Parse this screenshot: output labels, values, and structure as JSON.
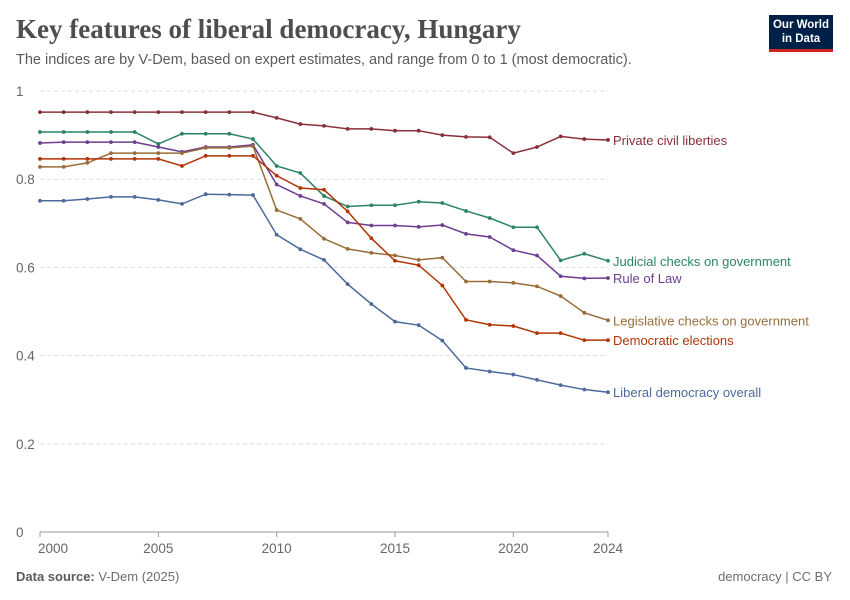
{
  "header": {
    "title": "Key features of liberal democracy, Hungary",
    "subtitle": "The indices are by V-Dem, based on expert estimates, and range from 0 to 1 (most democratic).",
    "logo_line1": "Our World",
    "logo_line2": "in Data"
  },
  "footer": {
    "source_label": "Data source:",
    "source_value": "V-Dem (2025)",
    "license": "democracy | CC BY"
  },
  "colors": {
    "logo_bg": "#002147",
    "logo_accent": "#ce261e"
  },
  "chart_data": {
    "type": "line",
    "title": "Key features of liberal democracy, Hungary",
    "x": [
      2000,
      2001,
      2002,
      2003,
      2004,
      2005,
      2006,
      2007,
      2008,
      2009,
      2010,
      2011,
      2012,
      2013,
      2014,
      2015,
      2016,
      2017,
      2018,
      2019,
      2020,
      2021,
      2022,
      2023,
      2024
    ],
    "xlim": [
      2000,
      2024
    ],
    "ylim": [
      0,
      1
    ],
    "x_ticks": [
      2000,
      2005,
      2010,
      2015,
      2020,
      2024
    ],
    "y_ticks": [
      0,
      0.2,
      0.4,
      0.6,
      0.8,
      1
    ],
    "y_tick_labels": [
      "0",
      "0.2",
      "0.4",
      "0.6",
      "0.8",
      "1"
    ],
    "grid": "horizontal dashed",
    "legend": "labels at line ends (right)",
    "series": [
      {
        "name": "Private civil liberties",
        "color": "#883039",
        "values": [
          0.952,
          0.952,
          0.952,
          0.952,
          0.952,
          0.952,
          0.952,
          0.952,
          0.952,
          0.952,
          0.939,
          0.925,
          0.921,
          0.914,
          0.914,
          0.91,
          0.91,
          0.9,
          0.896,
          0.895,
          0.859,
          0.873,
          0.897,
          0.891,
          0.889
        ]
      },
      {
        "name": "Judicial checks on government",
        "color": "#2c8465",
        "values": [
          0.907,
          0.907,
          0.907,
          0.907,
          0.907,
          0.88,
          0.903,
          0.903,
          0.903,
          0.891,
          0.83,
          0.814,
          0.762,
          0.738,
          0.741,
          0.741,
          0.749,
          0.746,
          0.728,
          0.712,
          0.691,
          0.691,
          0.616,
          0.631,
          0.615
        ]
      },
      {
        "name": "Rule of Law",
        "color": "#6d3e91",
        "values": [
          0.882,
          0.884,
          0.884,
          0.884,
          0.884,
          0.873,
          0.862,
          0.873,
          0.873,
          0.878,
          0.788,
          0.762,
          0.744,
          0.702,
          0.695,
          0.695,
          0.692,
          0.696,
          0.676,
          0.669,
          0.639,
          0.627,
          0.58,
          0.575,
          0.576
        ]
      },
      {
        "name": "Legislative checks on government",
        "color": "#996d39",
        "values": [
          0.828,
          0.828,
          0.837,
          0.859,
          0.859,
          0.859,
          0.859,
          0.871,
          0.871,
          0.875,
          0.73,
          0.71,
          0.665,
          0.642,
          0.633,
          0.627,
          0.617,
          0.622,
          0.568,
          0.568,
          0.565,
          0.557,
          0.535,
          0.497,
          0.48
        ]
      },
      {
        "name": "Democratic elections",
        "color": "#b13507",
        "values": [
          0.846,
          0.846,
          0.846,
          0.846,
          0.846,
          0.846,
          0.83,
          0.853,
          0.853,
          0.853,
          0.808,
          0.78,
          0.776,
          0.727,
          0.666,
          0.615,
          0.605,
          0.559,
          0.481,
          0.47,
          0.467,
          0.451,
          0.451,
          0.435,
          0.435
        ]
      },
      {
        "name": "Liberal democracy overall",
        "color": "#4c6a9c",
        "values": [
          0.751,
          0.751,
          0.755,
          0.76,
          0.76,
          0.753,
          0.744,
          0.766,
          0.765,
          0.764,
          0.674,
          0.641,
          0.617,
          0.562,
          0.517,
          0.477,
          0.469,
          0.434,
          0.372,
          0.364,
          0.357,
          0.345,
          0.333,
          0.323,
          0.317
        ]
      }
    ]
  }
}
